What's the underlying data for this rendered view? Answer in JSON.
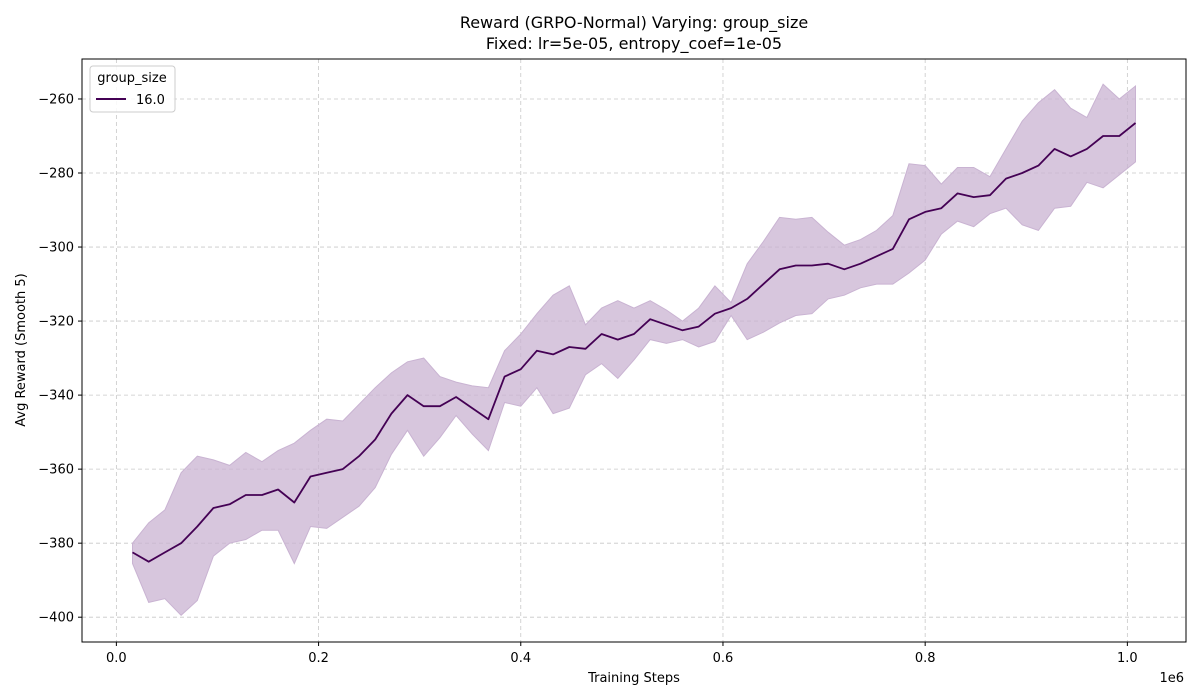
{
  "chart_data": {
    "type": "line",
    "title": "Reward (GRPO-Normal) Varying: group_size",
    "subtitle": "Fixed: lr=5e-05, entropy_coef=1e-05",
    "xlabel": "Training Steps",
    "ylabel": "Avg Reward (Smooth 5)",
    "x_offset_label": "1e6",
    "x_ticks": [
      0.0,
      0.2,
      0.4,
      0.6,
      0.8,
      1.0
    ],
    "x_tick_labels": [
      "0.0",
      "0.2",
      "0.4",
      "0.6",
      "0.8",
      "1.0"
    ],
    "y_ticks": [
      -400,
      -380,
      -360,
      -340,
      -320,
      -300,
      -280,
      -260
    ],
    "y_tick_labels": [
      "−400",
      "−380",
      "−360",
      "−340",
      "−320",
      "−300",
      "−280",
      "−260"
    ],
    "xlim": [
      -0.034,
      1.058
    ],
    "ylim": [
      -406.7,
      -249.2
    ],
    "grid": true,
    "legend": {
      "title": "group_size",
      "location": "top-left",
      "entries": [
        "16.0"
      ]
    },
    "series": [
      {
        "name": "16.0",
        "color": "#440154",
        "band_color": "#c9b3d2",
        "x": [
          0.016,
          0.032,
          0.048,
          0.064,
          0.08,
          0.096,
          0.112,
          0.128,
          0.144,
          0.16,
          0.176,
          0.192,
          0.208,
          0.224,
          0.24,
          0.256,
          0.272,
          0.288,
          0.304,
          0.32,
          0.336,
          0.352,
          0.368,
          0.384,
          0.4,
          0.416,
          0.432,
          0.448,
          0.464,
          0.48,
          0.496,
          0.512,
          0.528,
          0.544,
          0.56,
          0.576,
          0.592,
          0.608,
          0.624,
          0.64,
          0.656,
          0.672,
          0.688,
          0.704,
          0.72,
          0.736,
          0.752,
          0.768,
          0.784,
          0.8,
          0.816,
          0.832,
          0.848,
          0.864,
          0.88,
          0.896,
          0.912,
          0.928,
          0.944,
          0.96,
          0.976,
          0.992,
          1.008
        ],
        "mean": [
          -382.5,
          -385.0,
          -382.5,
          -380.0,
          -375.5,
          -370.5,
          -369.5,
          -367.0,
          -367.0,
          -365.5,
          -369.0,
          -362.0,
          -361.0,
          -360.0,
          -356.5,
          -352.0,
          -345.0,
          -340.0,
          -343.0,
          -343.0,
          -340.5,
          -343.5,
          -346.5,
          -335.0,
          -333.0,
          -328.0,
          -329.0,
          -327.0,
          -327.5,
          -323.5,
          -325.0,
          -323.5,
          -319.5,
          -321.0,
          -322.5,
          -321.5,
          -318.0,
          -316.5,
          -314.0,
          -310.0,
          -306.0,
          -305.0,
          -305.0,
          -304.5,
          -306.0,
          -304.5,
          -302.5,
          -300.5,
          -292.5,
          -290.5,
          -289.5,
          -285.5,
          -286.5,
          -286.0,
          -281.5,
          -280.0,
          -278.0,
          -273.5,
          -275.5,
          -273.5,
          -270.0,
          -270.0,
          -266.5
        ],
        "upper": [
          -380.0,
          -374.5,
          -371.0,
          -361.0,
          -356.5,
          -357.5,
          -359.0,
          -355.5,
          -358.0,
          -355.0,
          -353.0,
          -349.5,
          -346.5,
          -347.0,
          -342.5,
          -338.0,
          -334.0,
          -331.0,
          -330.0,
          -335.0,
          -336.5,
          -337.5,
          -338.0,
          -328.0,
          -323.5,
          -318.0,
          -313.0,
          -310.5,
          -321.0,
          -316.5,
          -314.5,
          -316.5,
          -314.5,
          -317.0,
          -320.0,
          -316.5,
          -310.5,
          -315.0,
          -304.5,
          -298.5,
          -292.0,
          -292.5,
          -292.0,
          -296.0,
          -299.5,
          -298.0,
          -295.5,
          -291.5,
          -277.5,
          -278.0,
          -283.0,
          -278.5,
          -278.5,
          -281.0,
          -273.5,
          -266.0,
          -261.0,
          -257.5,
          -262.5,
          -265.0,
          -256.0,
          -260.0,
          -256.5
        ],
        "lower": [
          -385.5,
          -396.0,
          -395.0,
          -399.5,
          -395.5,
          -383.5,
          -380.0,
          -379.0,
          -376.5,
          -376.5,
          -385.5,
          -375.5,
          -376.0,
          -373.0,
          -370.0,
          -365.0,
          -356.0,
          -349.5,
          -356.5,
          -351.5,
          -345.5,
          -350.5,
          -355.0,
          -342.0,
          -343.0,
          -338.0,
          -345.0,
          -343.5,
          -334.5,
          -331.5,
          -335.5,
          -330.5,
          -325.0,
          -326.0,
          -325.0,
          -327.0,
          -325.5,
          -318.5,
          -325.0,
          -323.0,
          -320.5,
          -318.5,
          -318.0,
          -314.0,
          -313.0,
          -311.0,
          -310.0,
          -310.0,
          -307.0,
          -303.5,
          -296.5,
          -293.0,
          -294.5,
          -291.0,
          -289.5,
          -294.0,
          -295.5,
          -289.5,
          -289.0,
          -282.5,
          -284.0,
          -280.5,
          -277.0
        ]
      }
    ]
  }
}
